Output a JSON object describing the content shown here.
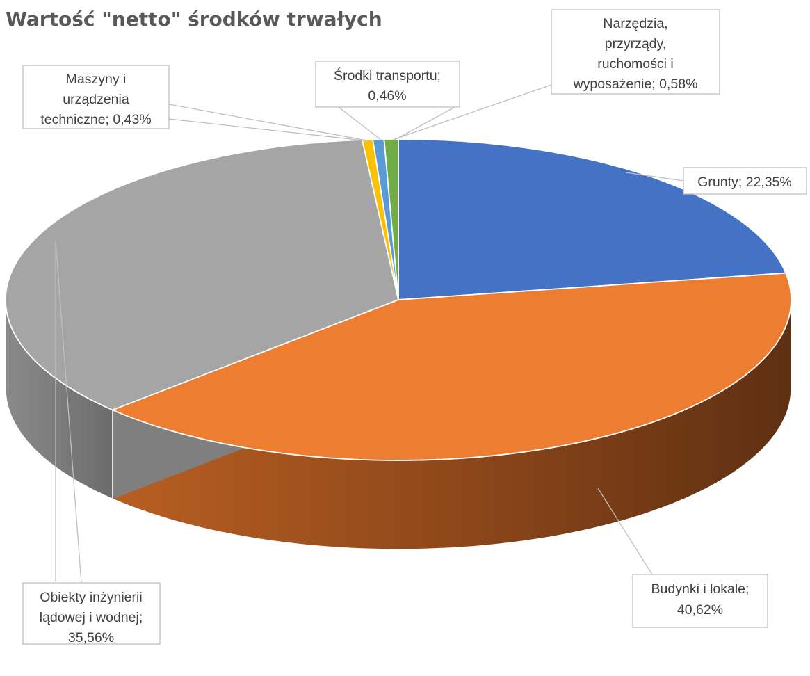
{
  "chart_data": {
    "type": "pie",
    "title": "Wartość \"netto\" środków trwałych",
    "slices": [
      {
        "name": "Grunty",
        "value": 22.35,
        "label_lines": [
          "Grunty; 22,35%"
        ],
        "color": "#4472C4"
      },
      {
        "name": "Budynki i lokale",
        "value": 40.62,
        "label_lines": [
          "Budynki i lokale;",
          "40,62%"
        ],
        "color": "#ED7D31"
      },
      {
        "name": "Obiekty inżynierii lądowej i wodnej",
        "value": 35.56,
        "label_lines": [
          "Obiekty inżynierii",
          "lądowej i wodnej;",
          "35,56%"
        ],
        "color": "#A5A5A5"
      },
      {
        "name": "Maszyny i urządzenia techniczne",
        "value": 0.43,
        "label_lines": [
          "Maszyny i",
          "urządzenia",
          "techniczne; 0,43%"
        ],
        "color": "#FFC000"
      },
      {
        "name": "Środki transportu",
        "value": 0.46,
        "label_lines": [
          "Środki transportu;",
          "0,46%"
        ],
        "color": "#5B9BD5"
      },
      {
        "name": "Narzędzia, przyrządy, ruchomości i wyposażenie",
        "value": 0.58,
        "label_lines": [
          "Narzędzia,",
          "przyrządy,",
          "ruchomości i",
          "wyposażenie; 0,58%"
        ],
        "color": "#70AD47"
      }
    ],
    "style": "3d",
    "legend": "none"
  }
}
